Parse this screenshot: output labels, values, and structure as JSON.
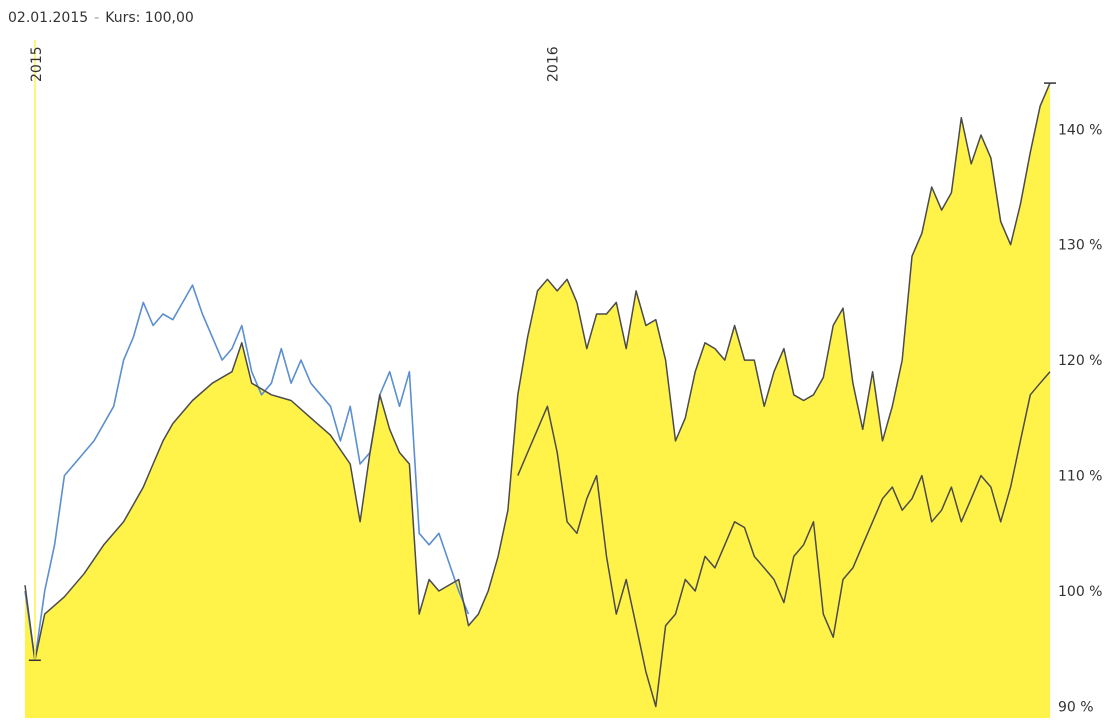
{
  "header": {
    "date": "02.01.2015",
    "separator": "-",
    "kurs_text": "Kurs: 100,00"
  },
  "colors": {
    "area_fill": "#fff34a",
    "main_line": "#4b4b4b",
    "compare_line": "#5b8fd0",
    "start_marker": "#fff34a"
  },
  "chart_data": {
    "type": "area",
    "x_unit": "date",
    "x_range": [
      "2015-01-02",
      "2016-12-30"
    ],
    "ylim": [
      89,
      146
    ],
    "y_ticks": [
      90,
      100,
      110,
      120,
      130,
      140
    ],
    "y_tick_labels": [
      "90 %",
      "100 %",
      "110 %",
      "120 %",
      "130 %",
      "140 %"
    ],
    "x_tick_labels": [
      {
        "date": "2015-01-02",
        "label": "2015"
      },
      {
        "date": "2016-01-04",
        "label": "2016"
      }
    ],
    "series": [
      {
        "role": "main_filled",
        "points": [
          [
            "2015-01-02",
            100.5
          ],
          [
            "2015-01-09",
            94.0
          ],
          [
            "2015-01-16",
            98.0
          ],
          [
            "2015-01-30",
            99.5
          ],
          [
            "2015-02-13",
            101.5
          ],
          [
            "2015-02-27",
            104.0
          ],
          [
            "2015-03-13",
            106.0
          ],
          [
            "2015-03-27",
            109.0
          ],
          [
            "2015-04-03",
            111.0
          ],
          [
            "2015-04-10",
            113.0
          ],
          [
            "2015-04-17",
            114.5
          ],
          [
            "2015-05-01",
            116.5
          ],
          [
            "2015-05-15",
            118.0
          ],
          [
            "2015-05-29",
            119.0
          ],
          [
            "2015-06-05",
            121.5
          ],
          [
            "2015-06-12",
            118.0
          ],
          [
            "2015-06-26",
            117.0
          ],
          [
            "2015-07-10",
            116.5
          ],
          [
            "2015-07-24",
            115.0
          ],
          [
            "2015-08-07",
            113.5
          ],
          [
            "2015-08-21",
            111.0
          ],
          [
            "2015-08-28",
            106.0
          ],
          [
            "2015-09-04",
            112.0
          ],
          [
            "2015-09-11",
            117.0
          ],
          [
            "2015-09-18",
            114.0
          ],
          [
            "2015-09-25",
            112.0
          ],
          [
            "2015-10-02",
            111.0
          ],
          [
            "2015-10-09",
            98.0
          ],
          [
            "2015-10-16",
            101.0
          ],
          [
            "2015-10-23",
            100.0
          ],
          [
            "2015-11-06",
            101.0
          ],
          [
            "2015-11-13",
            97.0
          ],
          [
            "2015-11-20",
            98.0
          ],
          [
            "2015-11-27",
            100.0
          ],
          [
            "2015-12-04",
            103.0
          ],
          [
            "2015-12-11",
            107.0
          ],
          [
            "2015-12-18",
            117.0
          ],
          [
            "2015-12-25",
            122.0
          ],
          [
            "2016-01-01",
            126.0
          ],
          [
            "2016-01-08",
            127.0
          ],
          [
            "2016-01-15",
            126.0
          ],
          [
            "2016-01-22",
            127.0
          ],
          [
            "2016-01-29",
            125.0
          ],
          [
            "2016-02-05",
            121.0
          ],
          [
            "2016-02-12",
            124.0
          ],
          [
            "2016-02-19",
            124.0
          ],
          [
            "2016-02-26",
            125.0
          ],
          [
            "2016-03-04",
            121.0
          ],
          [
            "2016-03-11",
            126.0
          ],
          [
            "2016-03-18",
            123.0
          ],
          [
            "2016-03-25",
            123.5
          ],
          [
            "2016-04-01",
            120.0
          ],
          [
            "2016-04-08",
            113.0
          ],
          [
            "2016-04-15",
            115.0
          ],
          [
            "2016-04-22",
            119.0
          ],
          [
            "2016-04-29",
            121.5
          ],
          [
            "2016-05-06",
            121.0
          ],
          [
            "2016-05-13",
            120.0
          ],
          [
            "2016-05-20",
            123.0
          ],
          [
            "2016-05-27",
            120.0
          ],
          [
            "2016-06-03",
            120.0
          ],
          [
            "2016-06-10",
            116.0
          ],
          [
            "2016-06-17",
            119.0
          ],
          [
            "2016-06-24",
            121.0
          ],
          [
            "2016-07-01",
            117.0
          ],
          [
            "2016-07-08",
            116.5
          ],
          [
            "2016-07-15",
            117.0
          ],
          [
            "2016-07-22",
            118.5
          ],
          [
            "2016-07-29",
            123.0
          ],
          [
            "2016-08-05",
            124.5
          ],
          [
            "2016-08-12",
            118.0
          ],
          [
            "2016-08-19",
            114.0
          ],
          [
            "2016-08-26",
            119.0
          ],
          [
            "2016-09-02",
            113.0
          ],
          [
            "2016-09-09",
            116.0
          ],
          [
            "2016-09-16",
            120.0
          ],
          [
            "2016-09-23",
            129.0
          ],
          [
            "2016-09-30",
            131.0
          ],
          [
            "2016-10-07",
            135.0
          ],
          [
            "2016-10-14",
            133.0
          ],
          [
            "2016-10-21",
            134.5
          ],
          [
            "2016-10-28",
            141.0
          ],
          [
            "2016-11-04",
            137.0
          ],
          [
            "2016-11-11",
            139.5
          ],
          [
            "2016-11-18",
            137.5
          ],
          [
            "2016-11-25",
            132.0
          ],
          [
            "2016-12-02",
            130.0
          ],
          [
            "2016-12-09",
            133.5
          ],
          [
            "2016-12-16",
            138.0
          ],
          [
            "2016-12-23",
            142.0
          ],
          [
            "2016-12-30",
            144.0
          ]
        ]
      },
      {
        "role": "main_continuation",
        "points": [
          [
            "2015-12-18",
            110.0
          ],
          [
            "2015-12-25",
            112.0
          ],
          [
            "2016-01-01",
            114.0
          ],
          [
            "2016-01-08",
            116.0
          ],
          [
            "2016-01-15",
            112.0
          ],
          [
            "2016-01-22",
            106.0
          ],
          [
            "2016-01-29",
            105.0
          ],
          [
            "2016-02-05",
            108.0
          ],
          [
            "2016-02-12",
            110.0
          ],
          [
            "2016-02-19",
            103.0
          ],
          [
            "2016-02-26",
            98.0
          ],
          [
            "2016-03-04",
            101.0
          ],
          [
            "2016-03-11",
            97.0
          ],
          [
            "2016-03-18",
            93.0
          ],
          [
            "2016-03-25",
            90.0
          ],
          [
            "2016-04-01",
            97.0
          ],
          [
            "2016-04-08",
            98.0
          ],
          [
            "2016-04-15",
            101.0
          ],
          [
            "2016-04-22",
            100.0
          ],
          [
            "2016-04-29",
            103.0
          ],
          [
            "2016-05-06",
            102.0
          ],
          [
            "2016-05-13",
            104.0
          ],
          [
            "2016-05-20",
            106.0
          ],
          [
            "2016-05-27",
            105.5
          ],
          [
            "2016-06-03",
            103.0
          ],
          [
            "2016-06-10",
            102.0
          ],
          [
            "2016-06-17",
            101.0
          ],
          [
            "2016-06-24",
            99.0
          ],
          [
            "2016-07-01",
            103.0
          ],
          [
            "2016-07-08",
            104.0
          ],
          [
            "2016-07-15",
            106.0
          ],
          [
            "2016-07-22",
            98.0
          ],
          [
            "2016-07-29",
            96.0
          ],
          [
            "2016-08-05",
            101.0
          ],
          [
            "2016-08-12",
            102.0
          ],
          [
            "2016-08-19",
            104.0
          ],
          [
            "2016-08-26",
            106.0
          ],
          [
            "2016-09-02",
            108.0
          ],
          [
            "2016-09-09",
            109.0
          ],
          [
            "2016-09-16",
            107.0
          ],
          [
            "2016-09-23",
            108.0
          ],
          [
            "2016-09-30",
            110.0
          ],
          [
            "2016-10-07",
            106.0
          ],
          [
            "2016-10-14",
            107.0
          ],
          [
            "2016-10-21",
            109.0
          ],
          [
            "2016-10-28",
            106.0
          ],
          [
            "2016-11-04",
            108.0
          ],
          [
            "2016-11-11",
            110.0
          ],
          [
            "2016-11-18",
            109.0
          ],
          [
            "2016-11-25",
            106.0
          ],
          [
            "2016-12-02",
            109.0
          ],
          [
            "2016-12-09",
            113.0
          ],
          [
            "2016-12-16",
            117.0
          ],
          [
            "2016-12-23",
            118.0
          ],
          [
            "2016-12-30",
            119.0
          ]
        ]
      },
      {
        "role": "compare_blue",
        "points": [
          [
            "2015-01-02",
            100.0
          ],
          [
            "2015-01-09",
            94.0
          ],
          [
            "2015-01-16",
            100.0
          ],
          [
            "2015-01-23",
            104.0
          ],
          [
            "2015-01-30",
            110.0
          ],
          [
            "2015-02-06",
            111.0
          ],
          [
            "2015-02-13",
            112.0
          ],
          [
            "2015-02-20",
            113.0
          ],
          [
            "2015-03-06",
            116.0
          ],
          [
            "2015-03-13",
            120.0
          ],
          [
            "2015-03-20",
            122.0
          ],
          [
            "2015-03-27",
            125.0
          ],
          [
            "2015-04-03",
            123.0
          ],
          [
            "2015-04-10",
            124.0
          ],
          [
            "2015-04-17",
            123.5
          ],
          [
            "2015-04-24",
            125.0
          ],
          [
            "2015-05-01",
            126.5
          ],
          [
            "2015-05-08",
            124.0
          ],
          [
            "2015-05-15",
            122.0
          ],
          [
            "2015-05-22",
            120.0
          ],
          [
            "2015-05-29",
            121.0
          ],
          [
            "2015-06-05",
            123.0
          ],
          [
            "2015-06-12",
            119.0
          ],
          [
            "2015-06-19",
            117.0
          ],
          [
            "2015-06-26",
            118.0
          ],
          [
            "2015-07-03",
            121.0
          ],
          [
            "2015-07-10",
            118.0
          ],
          [
            "2015-07-17",
            120.0
          ],
          [
            "2015-07-24",
            118.0
          ],
          [
            "2015-08-07",
            116.0
          ],
          [
            "2015-08-14",
            113.0
          ],
          [
            "2015-08-21",
            116.0
          ],
          [
            "2015-08-28",
            111.0
          ],
          [
            "2015-09-04",
            112.0
          ],
          [
            "2015-09-11",
            117.0
          ],
          [
            "2015-09-18",
            119.0
          ],
          [
            "2015-09-25",
            116.0
          ],
          [
            "2015-10-02",
            119.0
          ],
          [
            "2015-10-09",
            105.0
          ],
          [
            "2015-10-16",
            104.0
          ],
          [
            "2015-10-23",
            105.0
          ],
          [
            "2015-11-06",
            100.0
          ],
          [
            "2015-11-13",
            98.0
          ]
        ]
      }
    ]
  }
}
